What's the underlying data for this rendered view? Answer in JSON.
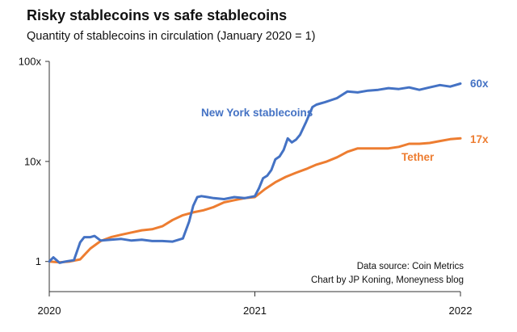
{
  "chart_data": {
    "type": "line",
    "title": "Risky stablecoins vs safe stablecoins",
    "subtitle": "Quantity of stablecoins in circulation (January 2020 = 1)",
    "yscale": "log",
    "ylim": [
      0.5,
      100
    ],
    "xlim": [
      2020.0,
      2022.0
    ],
    "y_ticks": [
      {
        "value": 1,
        "label": "1"
      },
      {
        "value": 10,
        "label": "10x"
      },
      {
        "value": 100,
        "label": "100x"
      }
    ],
    "x_ticks": [
      {
        "value": 2020,
        "label": "2020"
      },
      {
        "value": 2021,
        "label": "2021"
      },
      {
        "value": 2022,
        "label": "2022"
      }
    ],
    "series": [
      {
        "name": "New York stablecoins",
        "color": "#4472c4",
        "end_label": "60x",
        "x": [
          2020.0,
          2020.02,
          2020.05,
          2020.08,
          2020.12,
          2020.15,
          2020.17,
          2020.2,
          2020.22,
          2020.25,
          2020.3,
          2020.35,
          2020.4,
          2020.45,
          2020.5,
          2020.55,
          2020.6,
          2020.65,
          2020.68,
          2020.7,
          2020.72,
          2020.74,
          2020.77,
          2020.8,
          2020.85,
          2020.9,
          2020.95,
          2021.0,
          2021.02,
          2021.04,
          2021.06,
          2021.08,
          2021.1,
          2021.12,
          2021.14,
          2021.16,
          2021.18,
          2021.2,
          2021.22,
          2021.25,
          2021.28,
          2021.3,
          2021.32,
          2021.34,
          2021.37,
          2021.4,
          2021.45,
          2021.5,
          2021.55,
          2021.6,
          2021.65,
          2021.7,
          2021.75,
          2021.8,
          2021.85,
          2021.9,
          2021.95,
          2022.0
        ],
        "values": [
          1.0,
          1.1,
          0.97,
          1.0,
          1.03,
          1.55,
          1.75,
          1.75,
          1.8,
          1.62,
          1.65,
          1.68,
          1.62,
          1.65,
          1.6,
          1.6,
          1.58,
          1.7,
          2.5,
          3.6,
          4.4,
          4.5,
          4.4,
          4.3,
          4.2,
          4.4,
          4.3,
          4.5,
          5.4,
          6.8,
          7.2,
          8.2,
          10.5,
          11.2,
          13.0,
          17.0,
          15.5,
          16.5,
          18.5,
          25.0,
          35.0,
          37.0,
          38.0,
          39.0,
          41.0,
          43.0,
          50.0,
          49.0,
          51.0,
          52.0,
          54.0,
          53.0,
          55.0,
          52.0,
          55.0,
          58.0,
          56.0,
          60.0
        ]
      },
      {
        "name": "Tether",
        "color": "#ed7d31",
        "end_label": "17x",
        "x": [
          2020.0,
          2020.05,
          2020.1,
          2020.15,
          2020.2,
          2020.25,
          2020.3,
          2020.35,
          2020.4,
          2020.45,
          2020.5,
          2020.55,
          2020.6,
          2020.65,
          2020.7,
          2020.75,
          2020.8,
          2020.85,
          2020.9,
          2020.95,
          2021.0,
          2021.05,
          2021.1,
          2021.15,
          2021.2,
          2021.25,
          2021.3,
          2021.35,
          2021.4,
          2021.45,
          2021.5,
          2021.55,
          2021.6,
          2021.65,
          2021.7,
          2021.75,
          2021.8,
          2021.85,
          2021.9,
          2021.95,
          2022.0
        ],
        "values": [
          1.0,
          0.98,
          1.0,
          1.05,
          1.35,
          1.6,
          1.75,
          1.85,
          1.95,
          2.05,
          2.1,
          2.25,
          2.6,
          2.9,
          3.1,
          3.25,
          3.5,
          3.9,
          4.1,
          4.3,
          4.4,
          5.3,
          6.2,
          7.0,
          7.7,
          8.4,
          9.3,
          10.0,
          11.0,
          12.5,
          13.5,
          13.5,
          13.5,
          13.5,
          14.0,
          15.0,
          15.0,
          15.3,
          16.0,
          16.7,
          17.0
        ]
      }
    ],
    "annotations": [
      {
        "text": "New York stablecoins",
        "color": "#4472c4"
      },
      {
        "text": "Tether",
        "color": "#ed7d31"
      }
    ],
    "source_lines": [
      "Data source: Coin Metrics",
      "Chart by JP Koning, Moneyness blog"
    ]
  }
}
